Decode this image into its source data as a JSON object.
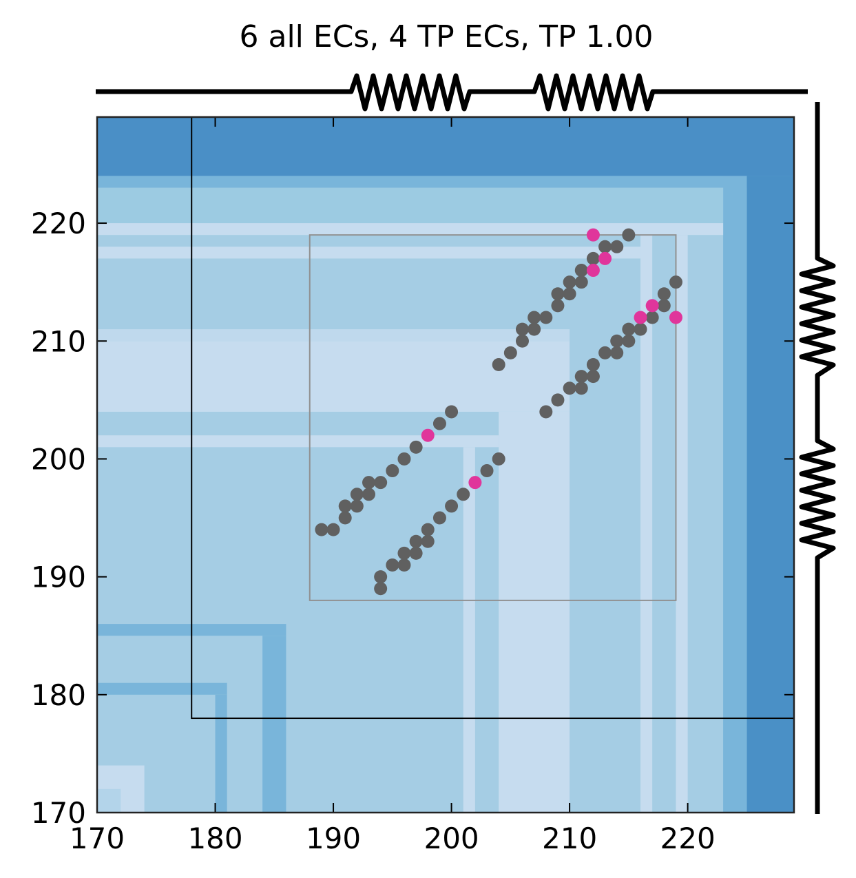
{
  "chart_data": {
    "type": "scatter",
    "title": "6 all ECs, 4 TP ECs, TP 1.00",
    "xlim": [
      170,
      229
    ],
    "ylim": [
      170,
      229
    ],
    "xticks": [
      170,
      180,
      190,
      200,
      210,
      220
    ],
    "yticks": [
      170,
      180,
      190,
      200,
      210,
      220
    ],
    "grid": false,
    "colors": {
      "other_contacts": "#606060",
      "true_positive": "#e0359b",
      "outer_box": "#000000",
      "inner_box": "#909090",
      "heatmap_dark": "#3e86c0",
      "heatmap_mid": "#79b5da",
      "heatmap_light": "#a5cde4",
      "heatmap_lightest": "#c6dcef"
    },
    "boxes": [
      {
        "x0": 178,
        "x1": 229,
        "y0": 178,
        "y1": 229,
        "color": "#000000"
      },
      {
        "x0": 188,
        "x1": 219,
        "y0": 188,
        "y1": 219,
        "color": "#909090"
      }
    ],
    "other_contacts": [
      [
        189,
        194
      ],
      [
        190,
        194
      ],
      [
        191,
        195
      ],
      [
        191,
        196
      ],
      [
        192,
        196
      ],
      [
        192,
        197
      ],
      [
        193,
        197
      ],
      [
        193,
        198
      ],
      [
        194,
        198
      ],
      [
        195,
        199
      ],
      [
        196,
        200
      ],
      [
        197,
        201
      ],
      [
        199,
        203
      ],
      [
        200,
        204
      ],
      [
        194,
        189
      ],
      [
        194,
        190
      ],
      [
        195,
        191
      ],
      [
        196,
        191
      ],
      [
        196,
        192
      ],
      [
        197,
        192
      ],
      [
        197,
        193
      ],
      [
        198,
        193
      ],
      [
        198,
        194
      ],
      [
        199,
        195
      ],
      [
        200,
        196
      ],
      [
        201,
        197
      ],
      [
        203,
        199
      ],
      [
        204,
        200
      ],
      [
        204,
        208
      ],
      [
        205,
        209
      ],
      [
        206,
        210
      ],
      [
        206,
        211
      ],
      [
        207,
        211
      ],
      [
        207,
        212
      ],
      [
        208,
        212
      ],
      [
        209,
        213
      ],
      [
        209,
        214
      ],
      [
        210,
        214
      ],
      [
        210,
        215
      ],
      [
        211,
        215
      ],
      [
        211,
        216
      ],
      [
        212,
        217
      ],
      [
        213,
        218
      ],
      [
        214,
        218
      ],
      [
        215,
        219
      ],
      [
        208,
        204
      ],
      [
        209,
        205
      ],
      [
        210,
        206
      ],
      [
        211,
        206
      ],
      [
        211,
        207
      ],
      [
        212,
        207
      ],
      [
        212,
        208
      ],
      [
        213,
        209
      ],
      [
        214,
        209
      ],
      [
        214,
        210
      ],
      [
        215,
        210
      ],
      [
        215,
        211
      ],
      [
        216,
        211
      ],
      [
        217,
        212
      ],
      [
        218,
        213
      ],
      [
        218,
        214
      ],
      [
        219,
        215
      ]
    ],
    "true_positive_contacts": [
      [
        198,
        202
      ],
      [
        202,
        198
      ],
      [
        212,
        216
      ],
      [
        212,
        219
      ],
      [
        213,
        217
      ],
      [
        216,
        212
      ],
      [
        217,
        213
      ],
      [
        219,
        212
      ]
    ]
  }
}
